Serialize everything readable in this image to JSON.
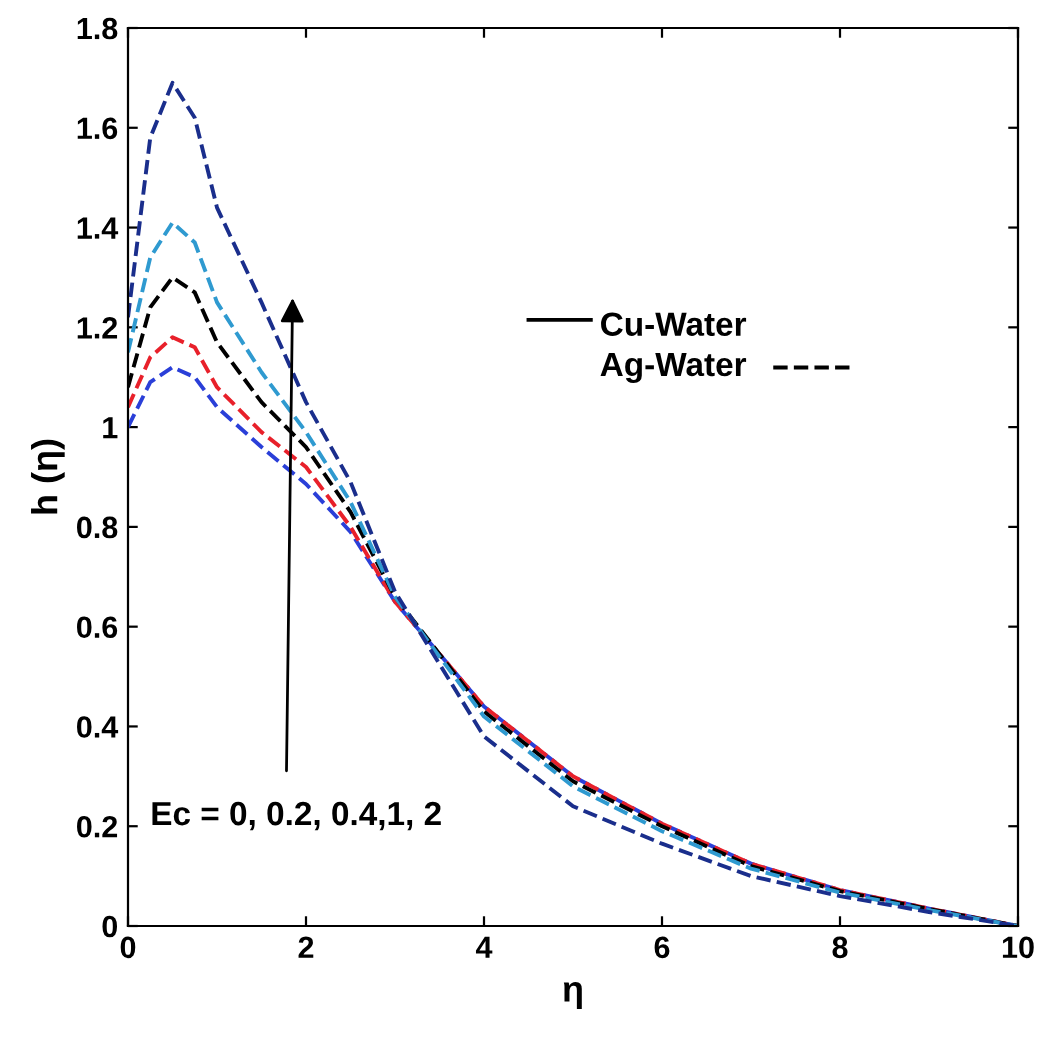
{
  "chart_data": {
    "type": "line",
    "xlabel": "η",
    "ylabel": "h (η)",
    "x": [
      0,
      0.25,
      0.5,
      0.75,
      1,
      1.5,
      2,
      2.5,
      3,
      4,
      5,
      6,
      7,
      8,
      9,
      10
    ],
    "series": [
      {
        "color": "#2a3fd8",
        "values": [
          1.0,
          1.09,
          1.12,
          1.1,
          1.04,
          0.96,
          0.886,
          0.79,
          0.65,
          0.44,
          0.3,
          0.205,
          0.125,
          0.072,
          0.035,
          0
        ]
      },
      {
        "color": "#e8202a",
        "values": [
          1.04,
          1.14,
          1.18,
          1.16,
          1.08,
          0.99,
          0.92,
          0.8,
          0.65,
          0.44,
          0.3,
          0.205,
          0.125,
          0.072,
          0.035,
          0
        ]
      },
      {
        "color": "#000000",
        "values": [
          1.08,
          1.24,
          1.3,
          1.27,
          1.17,
          1.05,
          0.96,
          0.83,
          0.66,
          0.43,
          0.29,
          0.2,
          0.12,
          0.07,
          0.034,
          0
        ]
      },
      {
        "color": "#2f9ad0",
        "values": [
          1.15,
          1.34,
          1.41,
          1.37,
          1.25,
          1.11,
          0.99,
          0.85,
          0.66,
          0.42,
          0.28,
          0.19,
          0.115,
          0.067,
          0.032,
          0
        ]
      },
      {
        "color": "#1a2e8c",
        "values": [
          1.22,
          1.58,
          1.69,
          1.62,
          1.44,
          1.25,
          1.05,
          0.89,
          0.67,
          0.38,
          0.24,
          0.165,
          0.1,
          0.06,
          0.028,
          0
        ]
      }
    ],
    "line_style": "dashed",
    "marker": "none",
    "grid": false,
    "legend": false,
    "xlim": [
      0,
      10
    ],
    "xticks": [
      0,
      2,
      4,
      6,
      8,
      10
    ],
    "ylim": [
      0,
      1.8
    ],
    "yticks": [
      0,
      0.2,
      0.4,
      0.6,
      0.8,
      1,
      1.2,
      1.4,
      1.6,
      1.8
    ],
    "annotations": [
      "Ec = 0, 0.2, 0.4,1, 2",
      "Cu-Water",
      "Ag-Water"
    ]
  }
}
